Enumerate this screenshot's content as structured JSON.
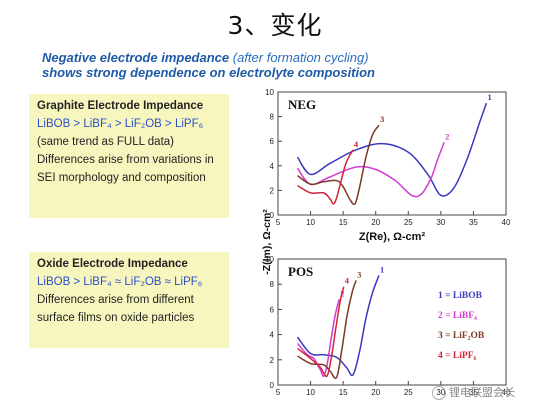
{
  "title": "3、变化",
  "subtitle": {
    "part1": "Negative electrode impedance",
    "part2": "(after formation cycling)",
    "part3": "shows strong dependence on electrolyte composition"
  },
  "box1": {
    "heading": "Graphite Electrode Impedance",
    "order": "LiBOB > LiBF₄ > LiF₂OB > LiPF₆",
    "lines": [
      "(same trend as FULL data)",
      "Differences arise from variations in",
      "SEI morphology and composition"
    ]
  },
  "box2": {
    "heading": "Oxide Electrode Impedance",
    "order": "LiBOB > LiBF₄ ≈ LiF₂OB ≈ LiPF₆",
    "lines": [
      "Differences arise from different",
      "surface films on oxide particles"
    ]
  },
  "watermark": "锂电联盟会长",
  "chart_data": {
    "type": "line",
    "ylabel": "-Z(Im), Ω-cm²",
    "x_ticks": [
      "5",
      "10",
      "15",
      "20",
      "25",
      "30",
      "35",
      "40"
    ],
    "legend": [
      "1 = LiBOB",
      "2 = LiBF₄",
      "3 = LiF₂OB",
      "4 = LiPF₆"
    ],
    "colors": [
      "#3a3ac0",
      "#d23ad2",
      "#7a3a24",
      "#d0243a"
    ],
    "panels": [
      {
        "label": "NEG",
        "xlabel": "Z(Re), Ω-cm²",
        "xlim": [
          5,
          40
        ],
        "ylim": [
          0,
          10
        ],
        "y_ticks": [
          "0",
          "2",
          "4",
          "6",
          "8",
          "10"
        ],
        "series": [
          {
            "label": "1",
            "points": [
              [
                8,
                4.7
              ],
              [
                10,
                3.3
              ],
              [
                13,
                4.2
              ],
              [
                17,
                5.3
              ],
              [
                21,
                5.8
              ],
              [
                25,
                5.1
              ],
              [
                28,
                3.3
              ],
              [
                30,
                1.6
              ],
              [
                32,
                2.2
              ],
              [
                34,
                4.5
              ],
              [
                36,
                7.6
              ],
              [
                37,
                9.1
              ]
            ]
          },
          {
            "label": "2",
            "points": [
              [
                8,
                3.8
              ],
              [
                10,
                2.5
              ],
              [
                13,
                3.1
              ],
              [
                17,
                3.9
              ],
              [
                20,
                3.7
              ],
              [
                23,
                2.8
              ],
              [
                25.5,
                1.6
              ],
              [
                27,
                1.7
              ],
              [
                28.5,
                3.0
              ],
              [
                29.5,
                4.5
              ],
              [
                30.5,
                5.9
              ]
            ]
          },
          {
            "label": "3",
            "points": [
              [
                8,
                3.2
              ],
              [
                10,
                2.5
              ],
              [
                12,
                2.7
              ],
              [
                14,
                2.8
              ],
              [
                15,
                2.3
              ],
              [
                16,
                1.3
              ],
              [
                16.8,
                0.9
              ],
              [
                17.5,
                2.2
              ],
              [
                18.5,
                4.7
              ],
              [
                19.5,
                6.5
              ],
              [
                20.5,
                7.3
              ]
            ]
          },
          {
            "label": "4",
            "points": [
              [
                8,
                2.4
              ],
              [
                10,
                1.8
              ],
              [
                12,
                1.8
              ],
              [
                13,
                1.3
              ],
              [
                13.5,
                0.9
              ],
              [
                14,
                1.4
              ],
              [
                14.8,
                3.0
              ],
              [
                15.5,
                4.3
              ],
              [
                16.5,
                5.3
              ]
            ]
          }
        ]
      },
      {
        "label": "POS",
        "xlabel": "",
        "xlim": [
          5,
          40
        ],
        "ylim": [
          0,
          10
        ],
        "y_ticks": [
          "0",
          "2",
          "4",
          "6",
          "8",
          "10"
        ],
        "series": [
          {
            "label": "1",
            "points": [
              [
                8,
                3.8
              ],
              [
                10,
                2.5
              ],
              [
                12,
                2.4
              ],
              [
                14,
                2.2
              ],
              [
                15.5,
                1.4
              ],
              [
                16.5,
                0.8
              ],
              [
                17.5,
                2.6
              ],
              [
                18.5,
                5.3
              ],
              [
                19.5,
                7.3
              ],
              [
                20.5,
                8.7
              ]
            ]
          },
          {
            "label": "2",
            "points": [
              [
                8,
                3.3
              ],
              [
                9.5,
                2.4
              ],
              [
                10.5,
                2.1
              ],
              [
                11.5,
                1.2
              ],
              [
                12,
                0.7
              ],
              [
                12.5,
                1.5
              ],
              [
                13.2,
                3.8
              ],
              [
                13.8,
                5.6
              ],
              [
                14.4,
                6.8
              ]
            ]
          },
          {
            "label": "3",
            "points": [
              [
                8,
                2.3
              ],
              [
                10,
                1.7
              ],
              [
                12,
                1.6
              ],
              [
                13,
                1.1
              ],
              [
                14,
                0.6
              ],
              [
                14.8,
                2.8
              ],
              [
                15.6,
                5.5
              ],
              [
                16.4,
                7.4
              ],
              [
                17,
                8.3
              ]
            ]
          },
          {
            "label": "4",
            "points": [
              [
                8,
                2.9
              ],
              [
                10,
                2.1
              ],
              [
                11.5,
                1.4
              ],
              [
                12.5,
                0.7
              ],
              [
                13.2,
                2.2
              ],
              [
                13.9,
                4.6
              ],
              [
                14.6,
                6.8
              ],
              [
                15.1,
                7.8
              ]
            ]
          }
        ]
      }
    ]
  }
}
